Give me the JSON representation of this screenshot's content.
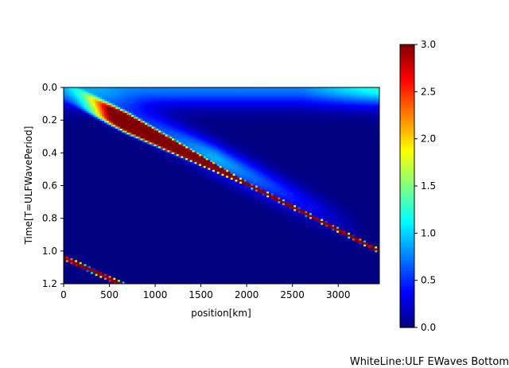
{
  "chart_data": {
    "type": "heatmap",
    "xlabel": "position[km]",
    "ylabel": "Time[T=ULFWavePeriod]",
    "xlim": [
      0,
      3450
    ],
    "ylim": [
      1.2,
      0.0
    ],
    "y_inverted": true,
    "xticks": [
      0,
      500,
      1000,
      1500,
      2000,
      2500,
      3000
    ],
    "yticks": [
      0.0,
      0.2,
      0.4,
      0.6,
      0.8,
      1.0,
      1.2
    ],
    "ytick_labels": [
      "0.0",
      "0.2",
      "0.4",
      "0.6",
      "0.8",
      "1.0",
      "1.2"
    ],
    "colormap": "jet",
    "colorbar": {
      "range": [
        0.0,
        3.0
      ],
      "ticks": [
        0.0,
        0.5,
        1.0,
        1.5,
        2.0,
        2.5,
        3.0
      ],
      "tick_labels": [
        "0.0",
        "0.5",
        "1.0",
        "1.5",
        "2.0",
        "2.5",
        "3.0"
      ]
    },
    "features": {
      "main_band": {
        "start": [
          700,
          0.22
        ],
        "end": [
          3450,
          1.0
        ],
        "peak_value": 3.0,
        "widening_toward": "small position"
      },
      "secondary_band": {
        "start": [
          0,
          1.04
        ],
        "end": [
          620,
          1.2
        ],
        "peak_value": 3.0
      },
      "background_top_value": 1.1,
      "background_value": 0.0
    }
  },
  "footer": {
    "note": "WhiteLine:ULF EWaves Bottom"
  }
}
